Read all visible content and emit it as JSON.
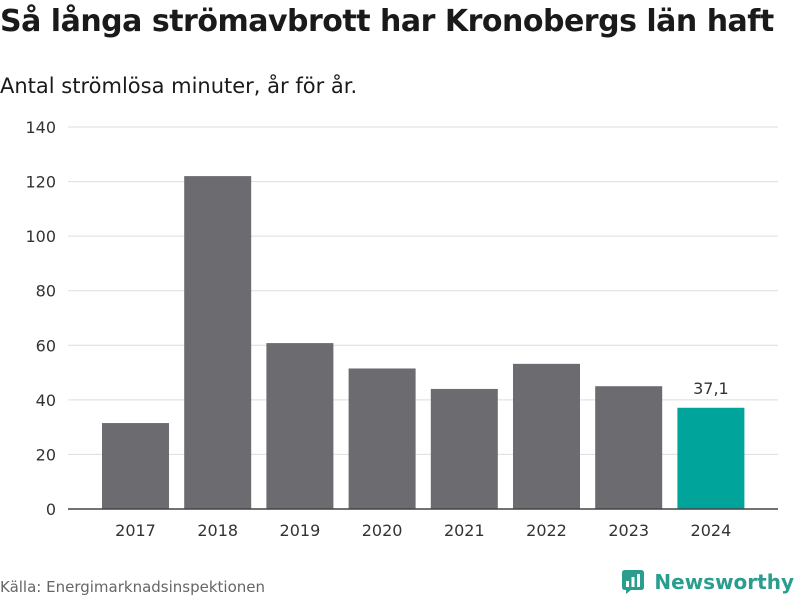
{
  "header": {
    "title": "Så långa strömavbrott har Kronobergs län haft",
    "subtitle": "Antal strömlösa minuter, år för år."
  },
  "footer": {
    "source": "Källa: Energimarknadsinspektionen",
    "brand": "Newsworthy"
  },
  "colors": {
    "bar": "#6b6b70",
    "highlight": "#00a49a",
    "brand": "#2a9d8f",
    "grid": "#dddddd",
    "text": "#333333"
  },
  "chart_data": {
    "type": "bar",
    "title": "Så långa strömavbrott har Kronobergs län haft",
    "subtitle": "Antal strömlösa minuter, år för år.",
    "categories": [
      "2017",
      "2018",
      "2019",
      "2020",
      "2021",
      "2022",
      "2023",
      "2024"
    ],
    "values": [
      31.5,
      122,
      60.8,
      51.5,
      44,
      53.2,
      45,
      37.1
    ],
    "highlight_index": 7,
    "data_labels": [
      {
        "index": 7,
        "text": "37,1"
      }
    ],
    "yticks": [
      0,
      20,
      40,
      60,
      80,
      100,
      120,
      140
    ],
    "ylim": [
      0,
      140
    ],
    "xlabel": "",
    "ylabel": "",
    "grid": true
  }
}
